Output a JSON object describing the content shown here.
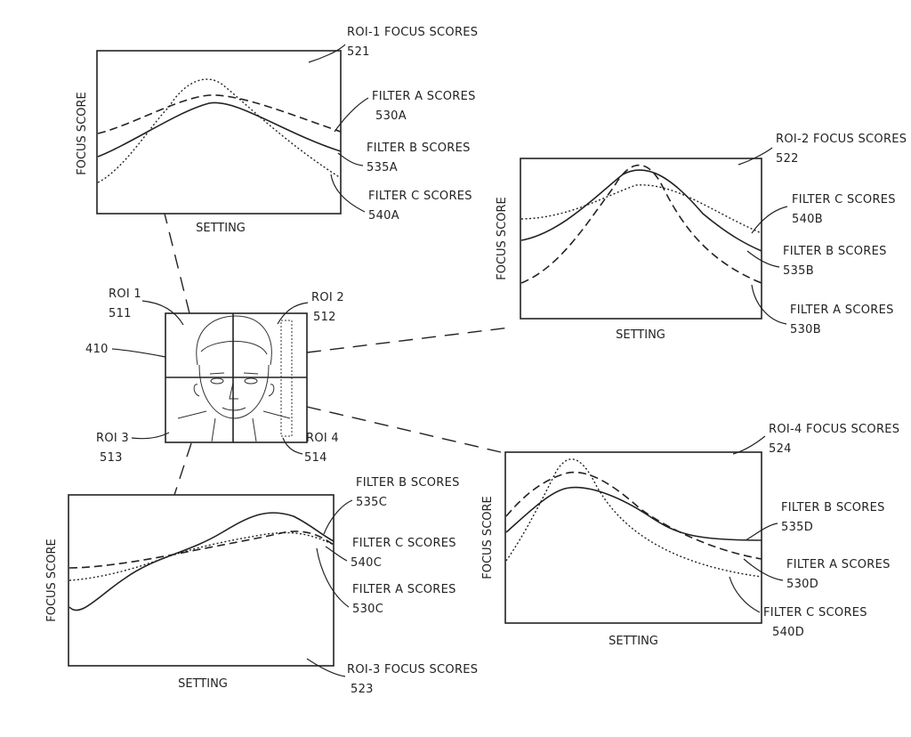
{
  "central_image": {
    "ref": "410",
    "roi_labels": [
      {
        "name": "ROI 1",
        "ref": "511"
      },
      {
        "name": "ROI 2",
        "ref": "512"
      },
      {
        "name": "ROI 3",
        "ref": "513"
      },
      {
        "name": "ROI 4",
        "ref": "514"
      }
    ]
  },
  "panels": [
    {
      "title": "ROI-1 FOCUS SCORES",
      "ref": "521",
      "xlabel": "SETTING",
      "ylabel": "FOCUS SCORE",
      "filters": [
        {
          "name": "FILTER A SCORES",
          "ref": "530A"
        },
        {
          "name": "FILTER B SCORES",
          "ref": "535A"
        },
        {
          "name": "FILTER C SCORES",
          "ref": "540A"
        }
      ]
    },
    {
      "title": "ROI-2 FOCUS SCORES",
      "ref": "522",
      "xlabel": "SETTING",
      "ylabel": "FOCUS SCORE",
      "filters": [
        {
          "name": "FILTER C SCORES",
          "ref": "540B"
        },
        {
          "name": "FILTER B SCORES",
          "ref": "535B"
        },
        {
          "name": "FILTER A SCORES",
          "ref": "530B"
        }
      ]
    },
    {
      "title": "ROI-3 FOCUS SCORES",
      "ref": "523",
      "xlabel": "SETTING",
      "ylabel": "FOCUS SCORE",
      "filters": [
        {
          "name": "FILTER B SCORES",
          "ref": "535C"
        },
        {
          "name": "FILTER C SCORES",
          "ref": "540C"
        },
        {
          "name": "FILTER A SCORES",
          "ref": "530C"
        }
      ]
    },
    {
      "title": "ROI-4 FOCUS SCORES",
      "ref": "524",
      "xlabel": "SETTING",
      "ylabel": "FOCUS SCORE",
      "filters": [
        {
          "name": "FILTER B SCORES",
          "ref": "535D"
        },
        {
          "name": "FILTER A SCORES",
          "ref": "530D"
        },
        {
          "name": "FILTER C SCORES",
          "ref": "540D"
        }
      ]
    }
  ]
}
